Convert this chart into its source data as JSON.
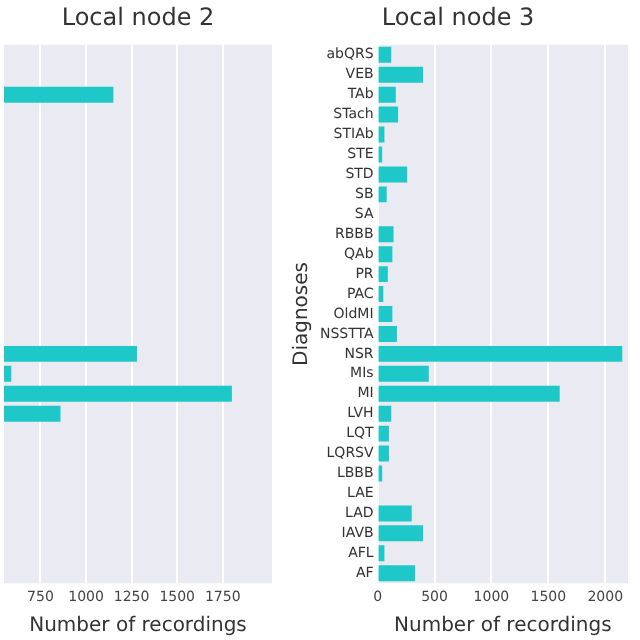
{
  "chart_data": [
    {
      "type": "bar",
      "orientation": "horizontal",
      "title": "Local node 2",
      "xlabel": "Number of recordings",
      "categories": [
        null,
        null,
        null,
        null,
        null,
        null,
        null,
        null,
        null,
        null,
        null,
        null,
        null,
        null,
        null,
        null,
        null,
        null,
        null,
        null,
        null,
        null,
        null,
        null,
        null,
        null,
        null
      ],
      "series": [
        {
          "color": "#1ec8c8",
          "values": [
            null,
            null,
            1150,
            null,
            null,
            null,
            null,
            null,
            null,
            null,
            null,
            null,
            null,
            null,
            null,
            1280,
            590,
            1800,
            860,
            null,
            null,
            null,
            null,
            null,
            null,
            null,
            null
          ]
        }
      ],
      "xlim": [
        550,
        2020
      ],
      "xticks": [
        750,
        1000,
        1250,
        1500,
        1750
      ],
      "tick_labels": "x",
      "grid": "x",
      "legend": false
    },
    {
      "type": "bar",
      "orientation": "horizontal",
      "title": "Local node 3",
      "xlabel": "Number of recordings",
      "ylabel": "Diagnoses",
      "categories": [
        "abQRS",
        "VEB",
        "TAb",
        "STach",
        "STIAb",
        "STE",
        "STD",
        "SB",
        "SA",
        "RBBB",
        "QAb",
        "PR",
        "PAC",
        "OldMI",
        "NSSTTA",
        "NSR",
        "MIs",
        "MI",
        "LVH",
        "LQT",
        "LQRSV",
        "LBBB",
        "LAE",
        "LAD",
        "IAVB",
        "AFL",
        "AF"
      ],
      "series": [
        {
          "color": "#1ec8c8",
          "values": [
            120,
            400,
            160,
            180,
            60,
            40,
            260,
            80,
            0,
            140,
            130,
            90,
            50,
            130,
            170,
            2150,
            450,
            1600,
            120,
            100,
            100,
            40,
            0,
            300,
            400,
            60,
            330
          ]
        }
      ],
      "xlim": [
        0,
        2200
      ],
      "xticks": [
        0,
        500,
        1000,
        1500,
        2000
      ],
      "grid": "x",
      "legend": false
    }
  ]
}
